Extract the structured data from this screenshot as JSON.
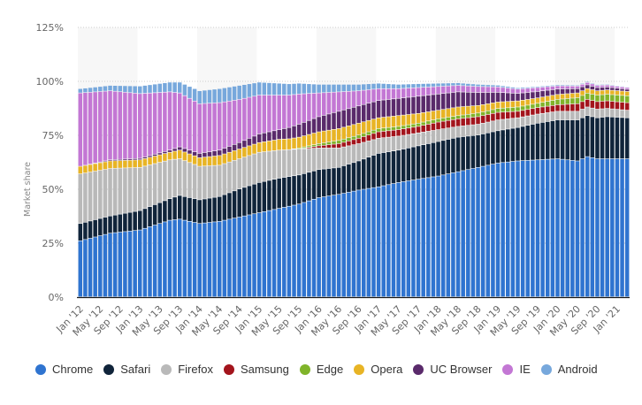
{
  "chart_data": {
    "type": "bar",
    "stacked": true,
    "title": "",
    "xlabel": "",
    "ylabel": "Market share",
    "ylim": [
      0,
      125
    ],
    "y_ticks": [
      "0%",
      "25%",
      "50%",
      "75%",
      "100%",
      "125%"
    ],
    "y_tick_values": [
      0,
      25,
      50,
      75,
      100,
      125
    ],
    "grid": true,
    "legend_position": "bottom",
    "x_tick_labels": [
      "Jan '12",
      "May '12",
      "Sep '12",
      "Jan '13",
      "May '13",
      "Sep '13",
      "Jan '14",
      "May '14",
      "Sep '14",
      "Jan '15",
      "May '15",
      "Sep '15",
      "Jan '16",
      "May '16",
      "Sep '16",
      "Jan '17",
      "May '17",
      "Sep '17",
      "Jan '18",
      "May '18",
      "Sep '18",
      "Jan '19",
      "May '19",
      "Sep '19",
      "Jan '20",
      "May '20",
      "Sep '20",
      "Jan '21"
    ],
    "x_tick_every": 4,
    "n_months": 111,
    "anchors_note": "monthly values Jan '12 – Mar '21, percent",
    "series": [
      {
        "name": "Chrome",
        "color": "#2f74d0",
        "anchors": [
          [
            0,
            26
          ],
          [
            6,
            29.5
          ],
          [
            12,
            31
          ],
          [
            18,
            35.5
          ],
          [
            20,
            36
          ],
          [
            24,
            34
          ],
          [
            28,
            35
          ],
          [
            32,
            37
          ],
          [
            36,
            39
          ],
          [
            40,
            41
          ],
          [
            44,
            43
          ],
          [
            48,
            46
          ],
          [
            52,
            47.5
          ],
          [
            56,
            49.5
          ],
          [
            60,
            51
          ],
          [
            64,
            53
          ],
          [
            68,
            54.5
          ],
          [
            72,
            56
          ],
          [
            76,
            58
          ],
          [
            80,
            60
          ],
          [
            84,
            62
          ],
          [
            88,
            63
          ],
          [
            92,
            63.5
          ],
          [
            96,
            64
          ],
          [
            100,
            63
          ],
          [
            102,
            65
          ],
          [
            104,
            64
          ],
          [
            106,
            64
          ],
          [
            110,
            64
          ]
        ]
      },
      {
        "name": "Safari",
        "color": "#10243a",
        "anchors": [
          [
            0,
            8
          ],
          [
            6,
            8
          ],
          [
            12,
            9
          ],
          [
            18,
            10
          ],
          [
            20,
            11
          ],
          [
            24,
            11
          ],
          [
            28,
            11.5
          ],
          [
            32,
            13
          ],
          [
            36,
            14
          ],
          [
            40,
            14
          ],
          [
            44,
            13.5
          ],
          [
            48,
            13
          ],
          [
            52,
            12.5
          ],
          [
            56,
            13.5
          ],
          [
            60,
            15.5
          ],
          [
            64,
            15
          ],
          [
            68,
            15.5
          ],
          [
            72,
            16
          ],
          [
            76,
            16
          ],
          [
            80,
            15
          ],
          [
            84,
            15
          ],
          [
            88,
            15.5
          ],
          [
            92,
            17
          ],
          [
            96,
            18
          ],
          [
            100,
            19
          ],
          [
            104,
            19
          ],
          [
            106,
            19.5
          ],
          [
            110,
            19
          ]
        ]
      },
      {
        "name": "Firefox",
        "color": "#b9b9b9",
        "anchors": [
          [
            0,
            23
          ],
          [
            6,
            22
          ],
          [
            12,
            20
          ],
          [
            18,
            18
          ],
          [
            20,
            17
          ],
          [
            24,
            15.5
          ],
          [
            28,
            14.5
          ],
          [
            32,
            14
          ],
          [
            36,
            14
          ],
          [
            40,
            13
          ],
          [
            44,
            12
          ],
          [
            48,
            10
          ],
          [
            52,
            9
          ],
          [
            56,
            8
          ],
          [
            60,
            7
          ],
          [
            64,
            6.5
          ],
          [
            68,
            6
          ],
          [
            72,
            5.5
          ],
          [
            76,
            5
          ],
          [
            80,
            5
          ],
          [
            84,
            5
          ],
          [
            88,
            4.5
          ],
          [
            92,
            4.2
          ],
          [
            96,
            4
          ],
          [
            100,
            4
          ],
          [
            104,
            4
          ],
          [
            110,
            3.5
          ]
        ]
      },
      {
        "name": "Samsung",
        "color": "#a3141c",
        "anchors": [
          [
            0,
            0
          ],
          [
            44,
            0
          ],
          [
            48,
            1
          ],
          [
            52,
            2
          ],
          [
            56,
            2.5
          ],
          [
            60,
            3
          ],
          [
            64,
            3
          ],
          [
            68,
            3
          ],
          [
            72,
            3.5
          ],
          [
            76,
            3.5
          ],
          [
            80,
            3.5
          ],
          [
            84,
            3.5
          ],
          [
            88,
            3
          ],
          [
            92,
            3
          ],
          [
            96,
            3
          ],
          [
            100,
            3.5
          ],
          [
            104,
            3.5
          ],
          [
            110,
            3.5
          ]
        ]
      },
      {
        "name": "Edge",
        "color": "#80b42a",
        "anchors": [
          [
            0,
            0
          ],
          [
            42,
            0
          ],
          [
            44,
            0.5
          ],
          [
            48,
            1
          ],
          [
            52,
            1.5
          ],
          [
            56,
            1.5
          ],
          [
            60,
            1.5
          ],
          [
            64,
            1.5
          ],
          [
            68,
            1.5
          ],
          [
            72,
            1.5
          ],
          [
            76,
            1.5
          ],
          [
            80,
            1.7
          ],
          [
            84,
            1.8
          ],
          [
            88,
            2
          ],
          [
            92,
            2
          ],
          [
            96,
            2.5
          ],
          [
            100,
            2.8
          ],
          [
            104,
            3
          ],
          [
            110,
            3.2
          ]
        ]
      },
      {
        "name": "Opera",
        "color": "#e8b425",
        "anchors": [
          [
            0,
            3.5
          ],
          [
            6,
            3.5
          ],
          [
            12,
            3.5
          ],
          [
            18,
            3.5
          ],
          [
            20,
            4
          ],
          [
            24,
            4
          ],
          [
            28,
            4.5
          ],
          [
            32,
            4.5
          ],
          [
            36,
            4.5
          ],
          [
            40,
            5
          ],
          [
            44,
            5
          ],
          [
            48,
            5.5
          ],
          [
            52,
            5.5
          ],
          [
            56,
            5.5
          ],
          [
            60,
            5
          ],
          [
            64,
            5
          ],
          [
            68,
            4.5
          ],
          [
            72,
            4
          ],
          [
            76,
            4
          ],
          [
            80,
            3.5
          ],
          [
            84,
            3
          ],
          [
            88,
            2.8
          ],
          [
            92,
            2.5
          ],
          [
            96,
            2.3
          ],
          [
            100,
            2.2
          ],
          [
            104,
            2
          ],
          [
            110,
            2
          ]
        ]
      },
      {
        "name": "UC Browser",
        "color": "#5a2a6b",
        "anchors": [
          [
            0,
            0
          ],
          [
            6,
            0.5
          ],
          [
            12,
            0.7
          ],
          [
            18,
            1
          ],
          [
            20,
            1.5
          ],
          [
            24,
            2
          ],
          [
            28,
            2.5
          ],
          [
            32,
            3
          ],
          [
            36,
            4
          ],
          [
            40,
            4.5
          ],
          [
            44,
            6
          ],
          [
            48,
            7
          ],
          [
            52,
            8
          ],
          [
            56,
            8
          ],
          [
            60,
            8
          ],
          [
            64,
            8
          ],
          [
            68,
            8
          ],
          [
            72,
            7.5
          ],
          [
            76,
            7
          ],
          [
            80,
            6
          ],
          [
            84,
            4.5
          ],
          [
            88,
            3.5
          ],
          [
            92,
            3
          ],
          [
            96,
            2.5
          ],
          [
            100,
            2
          ],
          [
            104,
            1.5
          ],
          [
            110,
            1
          ]
        ]
      },
      {
        "name": "IE",
        "color": "#c377d4",
        "anchors": [
          [
            0,
            34
          ],
          [
            6,
            32
          ],
          [
            12,
            30
          ],
          [
            18,
            27
          ],
          [
            20,
            25
          ],
          [
            24,
            23
          ],
          [
            28,
            22
          ],
          [
            32,
            20
          ],
          [
            36,
            18
          ],
          [
            40,
            16
          ],
          [
            44,
            14
          ],
          [
            48,
            11
          ],
          [
            52,
            9
          ],
          [
            56,
            7
          ],
          [
            60,
            5.5
          ],
          [
            64,
            4.5
          ],
          [
            68,
            4
          ],
          [
            72,
            3.5
          ],
          [
            76,
            3
          ],
          [
            80,
            2.8
          ],
          [
            84,
            2.5
          ],
          [
            88,
            2
          ],
          [
            92,
            1.8
          ],
          [
            96,
            1.5
          ],
          [
            100,
            1.2
          ],
          [
            104,
            1
          ],
          [
            110,
            0.8
          ]
        ]
      },
      {
        "name": "Android",
        "color": "#77a8dc",
        "anchors": [
          [
            0,
            2
          ],
          [
            6,
            2.5
          ],
          [
            12,
            3.5
          ],
          [
            18,
            4.5
          ],
          [
            20,
            5
          ],
          [
            24,
            6
          ],
          [
            28,
            6.5
          ],
          [
            32,
            6.5
          ],
          [
            36,
            6
          ],
          [
            40,
            5.5
          ],
          [
            44,
            5
          ],
          [
            48,
            4
          ],
          [
            52,
            3.5
          ],
          [
            56,
            3
          ],
          [
            60,
            2.5
          ],
          [
            64,
            2
          ],
          [
            68,
            1.8
          ],
          [
            72,
            1.5
          ],
          [
            76,
            1.2
          ],
          [
            80,
            1
          ],
          [
            84,
            0.8
          ],
          [
            88,
            0.6
          ],
          [
            92,
            0.5
          ],
          [
            96,
            0.5
          ],
          [
            100,
            0.4
          ],
          [
            104,
            0.4
          ],
          [
            110,
            0.3
          ]
        ]
      }
    ]
  },
  "legend": {
    "items": [
      {
        "label": "Chrome",
        "color": "#2f74d0"
      },
      {
        "label": "Safari",
        "color": "#10243a"
      },
      {
        "label": "Firefox",
        "color": "#b9b9b9"
      },
      {
        "label": "Samsung",
        "color": "#a3141c"
      },
      {
        "label": "Edge",
        "color": "#80b42a"
      },
      {
        "label": "Opera",
        "color": "#e8b425"
      },
      {
        "label": "UC Browser",
        "color": "#5a2a6b"
      },
      {
        "label": "IE",
        "color": "#c377d4"
      },
      {
        "label": "Android",
        "color": "#77a8dc"
      }
    ]
  },
  "colors": {
    "band": "#f7f7f7",
    "gridline": "#cccccc",
    "axis": "#1a1a1a",
    "tick_text": "#666666"
  }
}
